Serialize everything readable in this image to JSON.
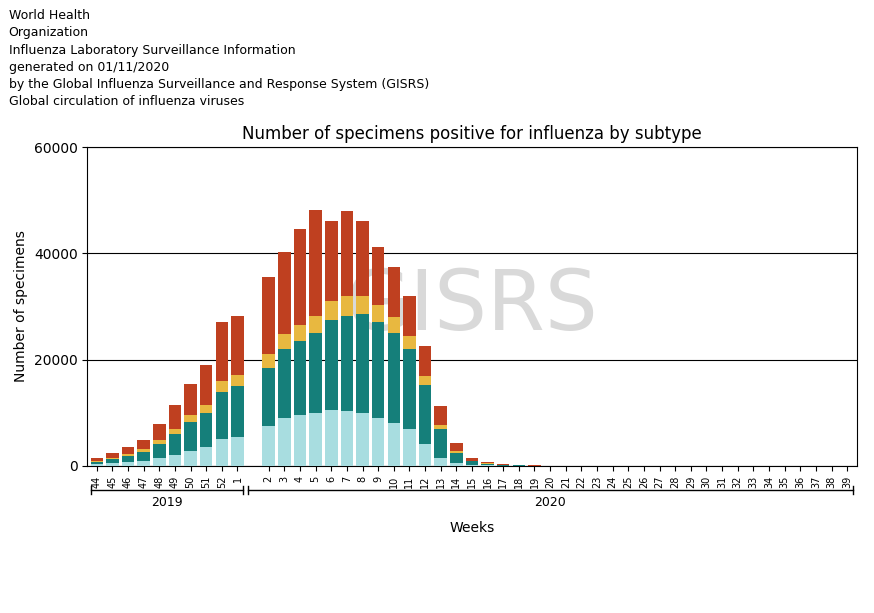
{
  "chart_data": {
    "type": "bar",
    "stacked": true,
    "title": "Number of specimens positive for influenza by subtype",
    "ylabel": "Number of specimens",
    "xlabel": "Weeks",
    "header": [
      "World Health",
      "Organization",
      "Influenza Laboratory Surveillance Information",
      "generated on 01/11/2020",
      "by the Global Influenza Surveillance and Response System (GISRS)",
      "Global circulation of influenza viruses"
    ],
    "watermark": "GISRS",
    "categories": [
      "44",
      "45",
      "46",
      "47",
      "48",
      "49",
      "50",
      "51",
      "52",
      "1",
      null,
      "2",
      "3",
      "4",
      "5",
      "6",
      "7",
      "8",
      "9",
      "10",
      "11",
      "12",
      "13",
      "14",
      "15",
      "16",
      "17",
      "18",
      "19",
      "20",
      "21",
      "22",
      "23",
      "24",
      "25",
      "26",
      "27",
      "28",
      "29",
      "30",
      "31",
      "32",
      "33",
      "34",
      "35",
      "36",
      "37",
      "38",
      "39"
    ],
    "year_groups": [
      {
        "label": "2019",
        "start": 0,
        "end": 9
      },
      {
        "label": "2020",
        "start": 10,
        "end": 48
      }
    ],
    "series": [
      {
        "color": "#a8dde0",
        "values": [
          300,
          500,
          700,
          900,
          1400,
          2000,
          2800,
          3500,
          5000,
          5500,
          0,
          7500,
          9000,
          9500,
          10000,
          10500,
          10300,
          10000,
          9000,
          8000,
          7000,
          4200,
          1400,
          500,
          200,
          100,
          50,
          30,
          0,
          0,
          0,
          0,
          0,
          0,
          0,
          0,
          0,
          0,
          0,
          0,
          0,
          0,
          0,
          0,
          0,
          0,
          0,
          0,
          0
        ]
      },
      {
        "color": "#157f7a",
        "values": [
          500,
          800,
          1200,
          1800,
          2800,
          4000,
          5500,
          6500,
          9000,
          9500,
          0,
          11000,
          13000,
          14000,
          15000,
          17000,
          18000,
          18500,
          18000,
          17000,
          15000,
          11000,
          5500,
          2000,
          700,
          300,
          150,
          50,
          0,
          0,
          0,
          0,
          0,
          0,
          0,
          0,
          0,
          0,
          0,
          0,
          0,
          0,
          0,
          0,
          0,
          0,
          0,
          0,
          0
        ]
      },
      {
        "color": "#e8b840",
        "values": [
          100,
          200,
          300,
          400,
          700,
          1000,
          1200,
          1500,
          2000,
          2200,
          0,
          2500,
          2800,
          3000,
          3200,
          3500,
          3700,
          3500,
          3200,
          3000,
          2500,
          1800,
          800,
          300,
          100,
          50,
          20,
          0,
          0,
          0,
          0,
          0,
          0,
          0,
          0,
          0,
          0,
          0,
          0,
          0,
          0,
          0,
          0,
          0,
          0,
          0,
          0,
          0,
          0
        ]
      },
      {
        "color": "#bf4020",
        "values": [
          600,
          900,
          1300,
          1800,
          3000,
          4500,
          6000,
          7500,
          11000,
          11000,
          0,
          14500,
          15500,
          18000,
          20000,
          15000,
          16000,
          14000,
          11000,
          9500,
          7500,
          5500,
          3500,
          1500,
          500,
          250,
          100,
          50,
          100,
          50,
          50,
          30,
          20,
          0,
          0,
          0,
          0,
          0,
          0,
          0,
          0,
          0,
          0,
          0,
          0,
          0,
          0,
          0,
          0
        ]
      }
    ],
    "ylim": [
      0,
      60000
    ],
    "yticks": [
      0,
      20000,
      40000,
      60000
    ],
    "grid": true
  }
}
